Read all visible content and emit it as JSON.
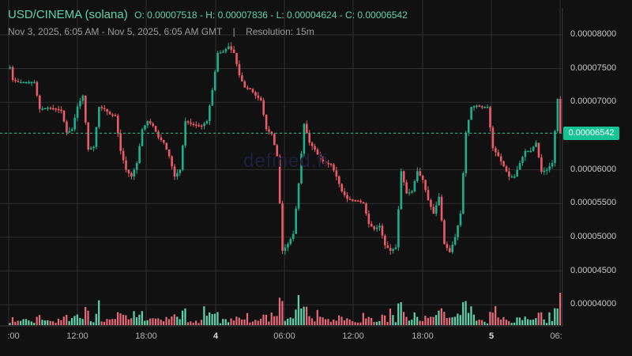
{
  "header": {
    "title": "USD/CINEMA (solana)",
    "ohlc_text": "O: 0.00007518 - H: 0.00007836 - L: 0.00004624 - C: 0.00006542",
    "range": "Nov 3, 2025, 6:05 AM - Nov 5, 2025, 6:05 AM GMT",
    "separator": "|",
    "resolution": "Resolution: 15m"
  },
  "watermark": "defined.fi",
  "last_price_label": "0.00006542",
  "colors": {
    "background": "#111111",
    "grid": "#2e2e2e",
    "up": "#1fae8c",
    "down": "#eb5a68",
    "up_volume": "#5ed3ae",
    "down_volume": "#e7697a",
    "last_price": "#17c294"
  },
  "chart_data": {
    "type": "candlestick",
    "title": "USD/CINEMA (solana)",
    "resolution": "15m",
    "open": 7.518e-05,
    "high": 7.836e-05,
    "low": 4.624e-05,
    "close": 6.542e-05,
    "y_ticks": [
      "0.00008000",
      "0.00007500",
      "0.00007000",
      "0.00006000",
      "0.00005500",
      "0.00005000",
      "0.00004500",
      "0.00004000"
    ],
    "x_ticks": [
      ":00",
      "12:00",
      "18:00",
      "4",
      "06:00",
      "12:00",
      "18:00",
      "5",
      "06:"
    ],
    "ylim": [
      3.75e-05,
      8.45e-05
    ],
    "grid": true,
    "price_path": [
      [
        0,
        7.52e-05
      ],
      [
        1,
        7.33e-05
      ],
      [
        3,
        7.3e-05
      ],
      [
        6,
        7.3e-05
      ],
      [
        9,
        7.3e-05
      ],
      [
        11,
        6.9e-05
      ],
      [
        14,
        6.92e-05
      ],
      [
        17,
        6.9e-05
      ],
      [
        19,
        6.88e-05
      ],
      [
        21,
        6.55e-05
      ],
      [
        23,
        6.6e-05
      ],
      [
        25,
        6.94e-05
      ],
      [
        27,
        7.1e-05
      ],
      [
        29,
        6.3e-05
      ],
      [
        31,
        6.34e-05
      ],
      [
        33,
        6.93e-05
      ],
      [
        35,
        6.9e-05
      ],
      [
        37,
        6.82e-05
      ],
      [
        39,
        6.8e-05
      ],
      [
        41,
        6.28e-05
      ],
      [
        43,
        6e-05
      ],
      [
        45,
        5.9e-05
      ],
      [
        47,
        6.1e-05
      ],
      [
        49,
        6.6e-05
      ],
      [
        51,
        6.72e-05
      ],
      [
        53,
        6.65e-05
      ],
      [
        55,
        6.48e-05
      ],
      [
        57,
        6.4e-05
      ],
      [
        59,
        6.2e-05
      ],
      [
        61,
        5.9e-05
      ],
      [
        63,
        6e-05
      ],
      [
        65,
        6.72e-05
      ],
      [
        67,
        6.68e-05
      ],
      [
        69,
        6.66e-05
      ],
      [
        71,
        6.65e-05
      ],
      [
        73,
        6.72e-05
      ],
      [
        75,
        7.18e-05
      ],
      [
        77,
        7.73e-05
      ],
      [
        79,
        7.75e-05
      ],
      [
        81,
        7.83e-05
      ],
      [
        83,
        7.73e-05
      ],
      [
        85,
        7.4e-05
      ],
      [
        87,
        7.22e-05
      ],
      [
        89,
        7.2e-05
      ],
      [
        91,
        7.1e-05
      ],
      [
        93,
        7.03e-05
      ],
      [
        95,
        6.6e-05
      ],
      [
        97,
        6.53e-05
      ],
      [
        99,
        6.2e-05
      ],
      [
        101,
        4.8e-05
      ],
      [
        103,
        4.9e-05
      ],
      [
        105,
        5.05e-05
      ],
      [
        107,
        5.8e-05
      ],
      [
        109,
        6.68e-05
      ],
      [
        111,
        6.4e-05
      ],
      [
        113,
        6.3e-05
      ],
      [
        115,
        6.15e-05
      ],
      [
        117,
        6.1e-05
      ],
      [
        119,
        6.08e-05
      ],
      [
        121,
        5.9e-05
      ],
      [
        123,
        5.68e-05
      ],
      [
        125,
        5.57e-05
      ],
      [
        127,
        5.55e-05
      ],
      [
        129,
        5.54e-05
      ],
      [
        131,
        5.5e-05
      ],
      [
        133,
        5.2e-05
      ],
      [
        135,
        5.12e-05
      ],
      [
        137,
        5.17e-05
      ],
      [
        139,
        4.88e-05
      ],
      [
        141,
        4.8e-05
      ],
      [
        143,
        4.85e-05
      ],
      [
        145,
        5.98e-05
      ],
      [
        147,
        5.65e-05
      ],
      [
        149,
        5.68e-05
      ],
      [
        151,
        5.98e-05
      ],
      [
        153,
        5.85e-05
      ],
      [
        155,
        5.55e-05
      ],
      [
        157,
        5.35e-05
      ],
      [
        159,
        5.6e-05
      ],
      [
        161,
        4.9e-05
      ],
      [
        163,
        4.78e-05
      ],
      [
        165,
        5e-05
      ],
      [
        167,
        5.35e-05
      ],
      [
        169,
        6.55e-05
      ],
      [
        171,
        6.93e-05
      ],
      [
        173,
        6.95e-05
      ],
      [
        175,
        6.93e-05
      ],
      [
        177,
        6.93e-05
      ],
      [
        179,
        6.32e-05
      ],
      [
        181,
        6.2e-05
      ],
      [
        183,
        6.05e-05
      ],
      [
        185,
        5.9e-05
      ],
      [
        187,
        5.9e-05
      ],
      [
        189,
        6.1e-05
      ],
      [
        191,
        6.28e-05
      ],
      [
        193,
        6.28e-05
      ],
      [
        195,
        6.4e-05
      ],
      [
        197,
        5.97e-05
      ],
      [
        199,
        6e-05
      ],
      [
        201,
        6.1e-05
      ],
      [
        203,
        7.05e-05
      ],
      [
        204,
        6.54e-05
      ]
    ]
  }
}
